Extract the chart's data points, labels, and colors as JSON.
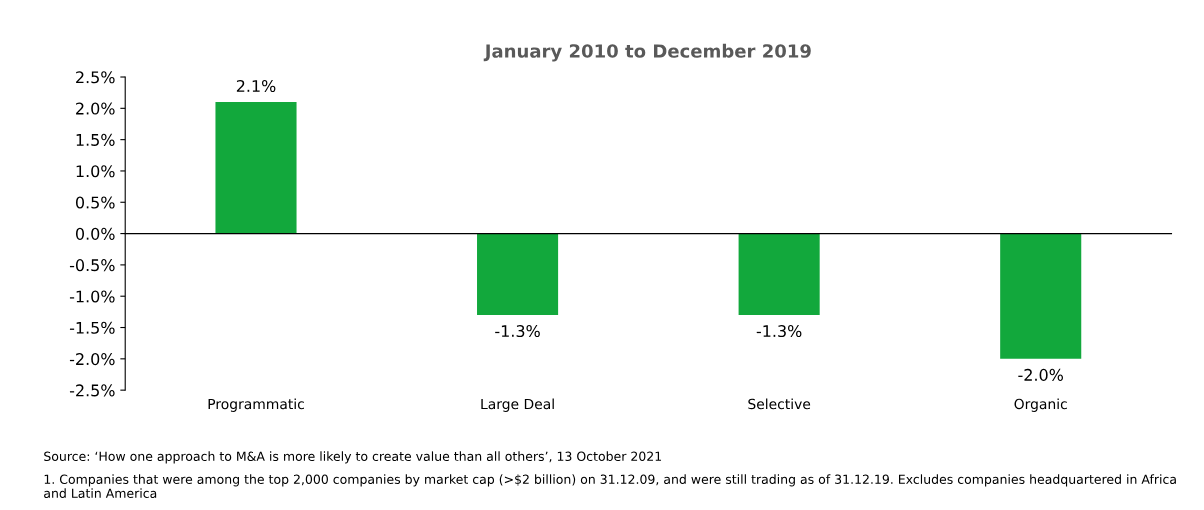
{
  "chart_data": {
    "type": "bar",
    "title": "January 2010 to December 2019",
    "categories": [
      "Programmatic",
      "Large Deal",
      "Selective",
      "Organic"
    ],
    "values": [
      2.1,
      -1.3,
      -1.3,
      -2.0
    ],
    "value_labels": [
      "2.1%",
      "-1.3%",
      "-1.3%",
      "-2.0%"
    ],
    "color": "#12a83c",
    "ylim": [
      -2.5,
      2.5
    ],
    "yticks": [
      {
        "value": 2.5,
        "label": "2.5%"
      },
      {
        "value": 2.0,
        "label": "2.0%"
      },
      {
        "value": 1.5,
        "label": "1.5%"
      },
      {
        "value": 1.0,
        "label": "1.0%"
      },
      {
        "value": 0.5,
        "label": "0.5%"
      },
      {
        "value": 0.0,
        "label": "0.0%"
      },
      {
        "value": -0.5,
        "label": "-0.5%"
      },
      {
        "value": -1.0,
        "label": "-1.0%"
      },
      {
        "value": -1.5,
        "label": "-1.5%"
      },
      {
        "value": -2.0,
        "label": "-2.0%"
      },
      {
        "value": -2.5,
        "label": "-2.5%"
      }
    ],
    "annotations": [
      "Source: ‘How one approach to M&A is more likely to create value than all others’, 13 October 2021",
      "1. Companies that were among the top 2,000 companies by market cap (>$2 billion) on 31.12.09, and were still trading as of 31.12.19. Excludes companies headquartered in Africa and Latin America"
    ]
  }
}
